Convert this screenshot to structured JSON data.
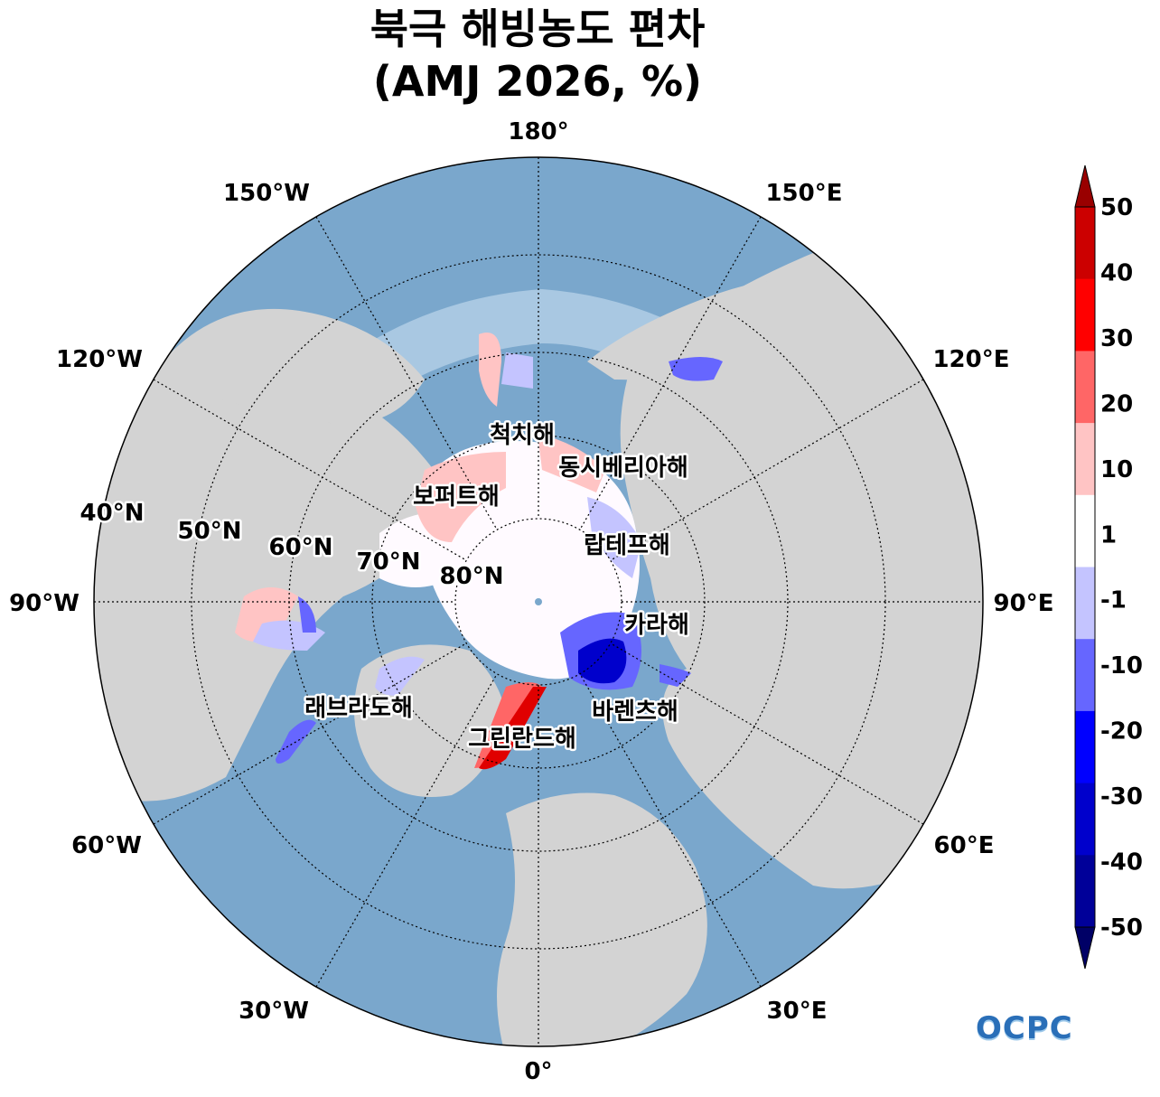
{
  "title": {
    "line1": "북극 해빙농도 편차",
    "line2": "(AMJ 2026, %)"
  },
  "meridian_labels": [
    "180°",
    "150°E",
    "120°E",
    "90°E",
    "60°E",
    "30°E",
    "0°",
    "30°W",
    "60°W",
    "90°W",
    "120°W",
    "150°W"
  ],
  "parallel_labels": [
    "40°N",
    "50°N",
    "60°N",
    "70°N",
    "80°N"
  ],
  "sea_labels": [
    "척치해",
    "동시베리아해",
    "보퍼트해",
    "랍테프해",
    "카라해",
    "바렌츠해",
    "그린란드해",
    "래브라도해"
  ],
  "colorbar": {
    "ticks": [
      "50",
      "40",
      "30",
      "20",
      "10",
      "1",
      "-1",
      "-10",
      "-20",
      "-30",
      "-40",
      "-50"
    ],
    "colors": [
      "#990000",
      "#cc0000",
      "#ff0000",
      "#ff6666",
      "#ffc4c4",
      "#ffffff",
      "#c4c4ff",
      "#6666ff",
      "#0000ff",
      "#0000cc",
      "#000099",
      "#000066"
    ]
  },
  "colors": {
    "ocean": "#7aa7cc",
    "land": "#d3d3d3",
    "ice": "#fffaff"
  },
  "logo": "OCPC"
}
